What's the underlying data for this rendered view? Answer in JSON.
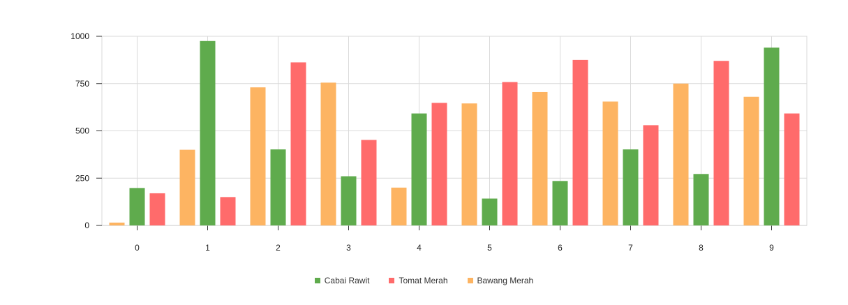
{
  "chart_data": {
    "type": "bar",
    "categories": [
      "0",
      "1",
      "2",
      "3",
      "4",
      "5",
      "6",
      "7",
      "8",
      "9"
    ],
    "series": [
      {
        "name": "Bawang Merah",
        "color": "#FDB462",
        "values": [
          15,
          400,
          730,
          755,
          200,
          645,
          705,
          655,
          750,
          680
        ]
      },
      {
        "name": "Cabai Rawit",
        "color": "#5FAB4D",
        "values": [
          198,
          975,
          402,
          260,
          592,
          142,
          235,
          402,
          272,
          940
        ]
      },
      {
        "name": "Tomat Merah",
        "color": "#FF6B6B",
        "values": [
          170,
          150,
          862,
          452,
          648,
          758,
          875,
          530,
          870,
          592
        ]
      }
    ],
    "legend_order": [
      "Cabai Rawit",
      "Tomat Merah",
      "Bawang Merah"
    ],
    "y_ticks": [
      "0",
      "250",
      "500",
      "750",
      "1000"
    ],
    "ylim": [
      0,
      1000
    ],
    "grid": true,
    "legend_position": "bottom-center",
    "title": "",
    "xlabel": "",
    "ylabel": ""
  }
}
